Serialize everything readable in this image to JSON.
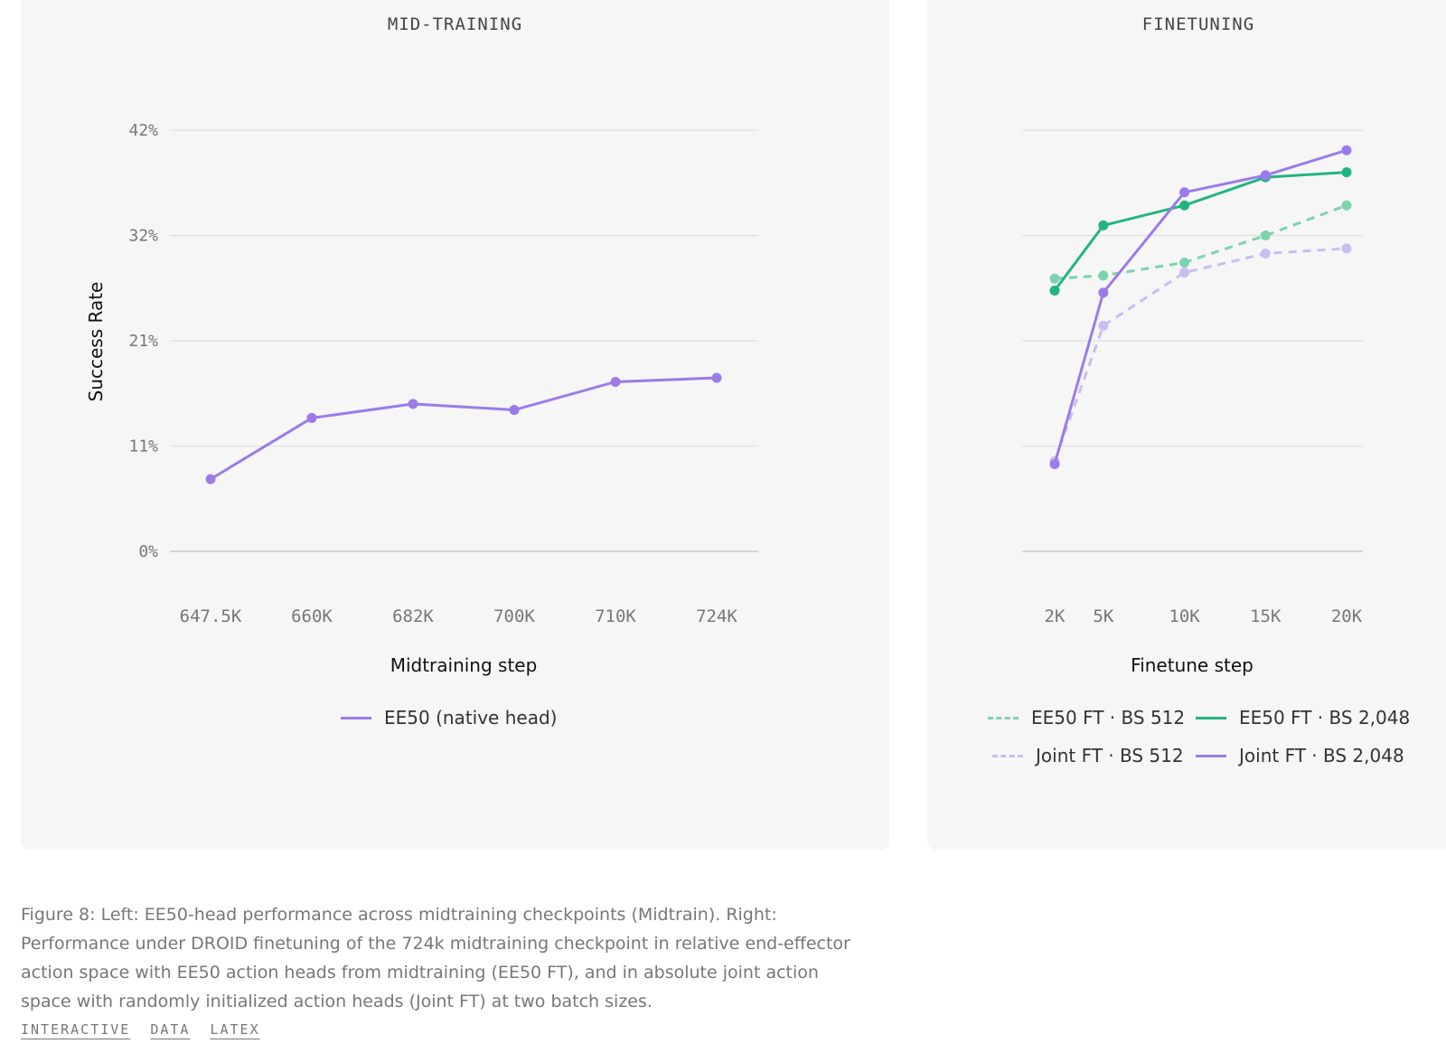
{
  "chart_data": [
    {
      "type": "line",
      "title": "MID-TRAINING",
      "xlabel": "Midtraining step",
      "ylabel": "Success Rate",
      "categories": [
        "647.5K",
        "660K",
        "682K",
        "700K",
        "710K",
        "724K"
      ],
      "y_ticks": [
        "0%",
        "11%",
        "21%",
        "32%",
        "42%"
      ],
      "y_tick_values": [
        0,
        10.5,
        21,
        31.5,
        42
      ],
      "ylim": [
        0,
        42
      ],
      "grid": true,
      "legend_position": "bottom",
      "series": [
        {
          "name": "EE50 (native head)",
          "color": "#9b7bea",
          "style": "solid",
          "values": [
            7.2,
            13.3,
            14.7,
            14.1,
            16.9,
            17.3
          ]
        }
      ]
    },
    {
      "type": "line",
      "title": "FINETUNING",
      "xlabel": "Finetune step",
      "ylabel": "",
      "x_ticks": [
        "2K",
        "5K",
        "10K",
        "15K",
        "20K"
      ],
      "x": [
        2000,
        5000,
        10000,
        15000,
        20000
      ],
      "xlim": [
        2000,
        20000
      ],
      "ylim": [
        0,
        42
      ],
      "y_tick_values": [
        0,
        10.5,
        21,
        31.5,
        42
      ],
      "grid": true,
      "legend_position": "bottom",
      "series": [
        {
          "name": "EE50 FT · BS 512",
          "color": "#7dd3b0",
          "style": "dashed",
          "values": [
            27.2,
            27.5,
            28.8,
            31.5,
            34.5
          ]
        },
        {
          "name": "EE50 FT · BS 2,048",
          "color": "#22b57f",
          "style": "solid",
          "values": [
            26.0,
            32.5,
            34.5,
            37.3,
            37.8
          ]
        },
        {
          "name": "Joint FT · BS 512",
          "color": "#c9bdf2",
          "style": "dashed",
          "values": [
            9.0,
            22.5,
            27.8,
            29.7,
            30.2
          ]
        },
        {
          "name": "Joint FT · BS 2,048",
          "color": "#9b7bea",
          "style": "solid",
          "values": [
            8.7,
            25.8,
            35.8,
            37.5,
            40.0
          ]
        }
      ]
    }
  ],
  "caption": "Figure 8: Left: EE50-head performance across midtraining checkpoints (Midtrain). Right: Performance under DROID finetuning of the 724k midtraining checkpoint in relative end-effector action space with EE50 action heads from midtraining (EE50 FT), and in absolute joint action space with randomly initialized action heads (Joint FT) at two batch sizes.",
  "links": [
    "INTERACTIVE",
    "DATA",
    "LATEX"
  ]
}
